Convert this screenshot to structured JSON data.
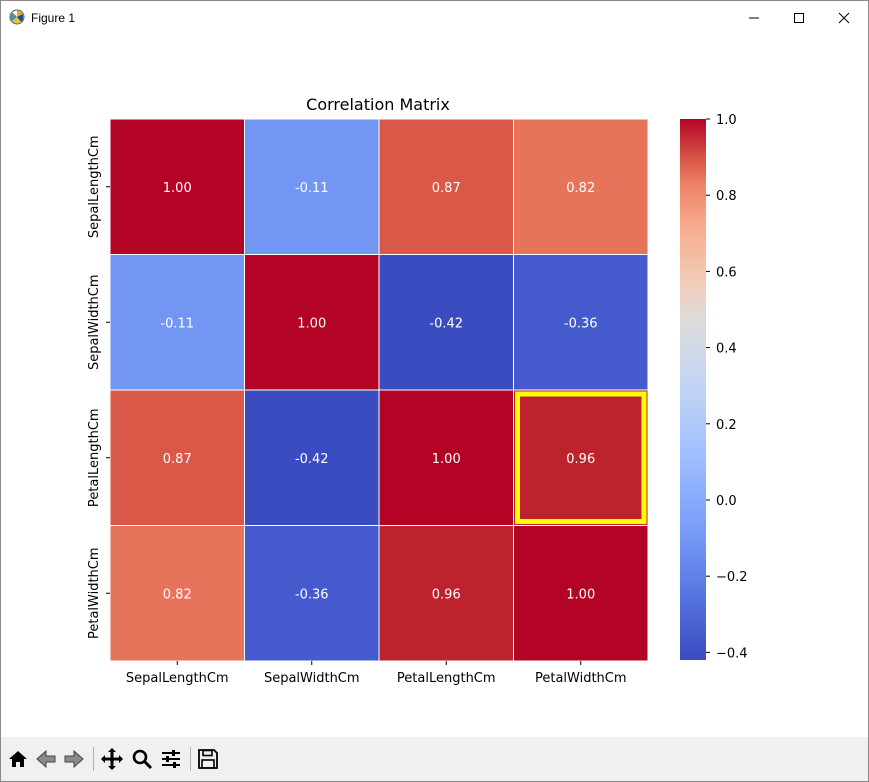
{
  "window": {
    "title": "Figure 1"
  },
  "toolbar": {
    "buttons": [
      {
        "name": "home",
        "icon": "home-icon"
      },
      {
        "name": "back",
        "icon": "back-arrow-icon"
      },
      {
        "name": "forward",
        "icon": "forward-arrow-icon"
      },
      {
        "name": "pan",
        "icon": "move-icon"
      },
      {
        "name": "zoom",
        "icon": "magnifier-icon"
      },
      {
        "name": "configure",
        "icon": "sliders-icon"
      },
      {
        "name": "save",
        "icon": "floppy-disk-icon"
      }
    ]
  },
  "chart_data": {
    "type": "heatmap",
    "title": "Correlation Matrix",
    "colormap": "coolwarm",
    "rows": [
      "SepalLengthCm",
      "SepalWidthCm",
      "PetalLengthCm",
      "PetalWidthCm"
    ],
    "cols": [
      "SepalLengthCm",
      "SepalWidthCm",
      "PetalLengthCm",
      "PetalWidthCm"
    ],
    "values": [
      [
        1.0,
        -0.11,
        0.87,
        0.82
      ],
      [
        -0.11,
        1.0,
        -0.42,
        -0.36
      ],
      [
        0.87,
        -0.42,
        1.0,
        0.96
      ],
      [
        0.82,
        -0.36,
        0.96,
        1.0
      ]
    ],
    "labels": [
      [
        "1.00",
        "-0.11",
        "0.87",
        "0.82"
      ],
      [
        "-0.11",
        "1.00",
        "-0.42",
        "-0.36"
      ],
      [
        "0.87",
        "-0.42",
        "1.00",
        "0.96"
      ],
      [
        "0.82",
        "-0.36",
        "0.96",
        "1.00"
      ]
    ],
    "vmin": -0.42,
    "vmax": 1.0,
    "colorbar_ticks": [
      1.0,
      0.8,
      0.6,
      0.4,
      0.2,
      0.0,
      -0.2,
      -0.4
    ],
    "colorbar_tick_labels": [
      "1.0",
      "0.8",
      "0.6",
      "0.4",
      "0.2",
      "0.0",
      "−0.2",
      "−0.4"
    ],
    "highlight": {
      "row": 2,
      "col": 3,
      "color": "#ffff00"
    }
  }
}
